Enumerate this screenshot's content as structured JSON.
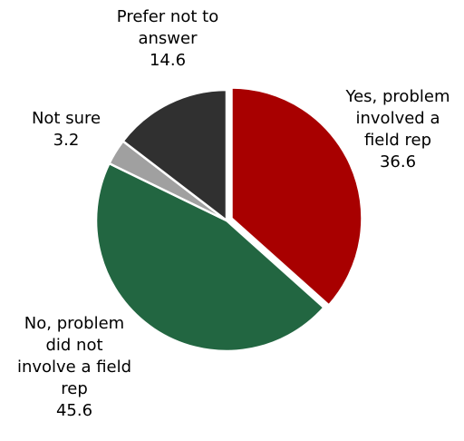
{
  "chart_data": {
    "type": "pie",
    "title": "",
    "legend": "none",
    "slices": [
      {
        "name_lines": [
          "Yes, problem",
          "involved a",
          "field rep"
        ],
        "value": 36.6,
        "value_label": "36.6",
        "color": "#A80000"
      },
      {
        "name_lines": [
          "No, problem",
          "did not",
          "involve a field",
          "rep"
        ],
        "value": 45.6,
        "value_label": "45.6",
        "color": "#226641"
      },
      {
        "name_lines": [
          "Not sure"
        ],
        "value": 3.2,
        "value_label": "3.2",
        "color": "#A0A0A0"
      },
      {
        "name_lines": [
          "Prefer not to",
          "answer"
        ],
        "value": 14.6,
        "value_label": "14.6",
        "color": "#303030"
      }
    ]
  }
}
